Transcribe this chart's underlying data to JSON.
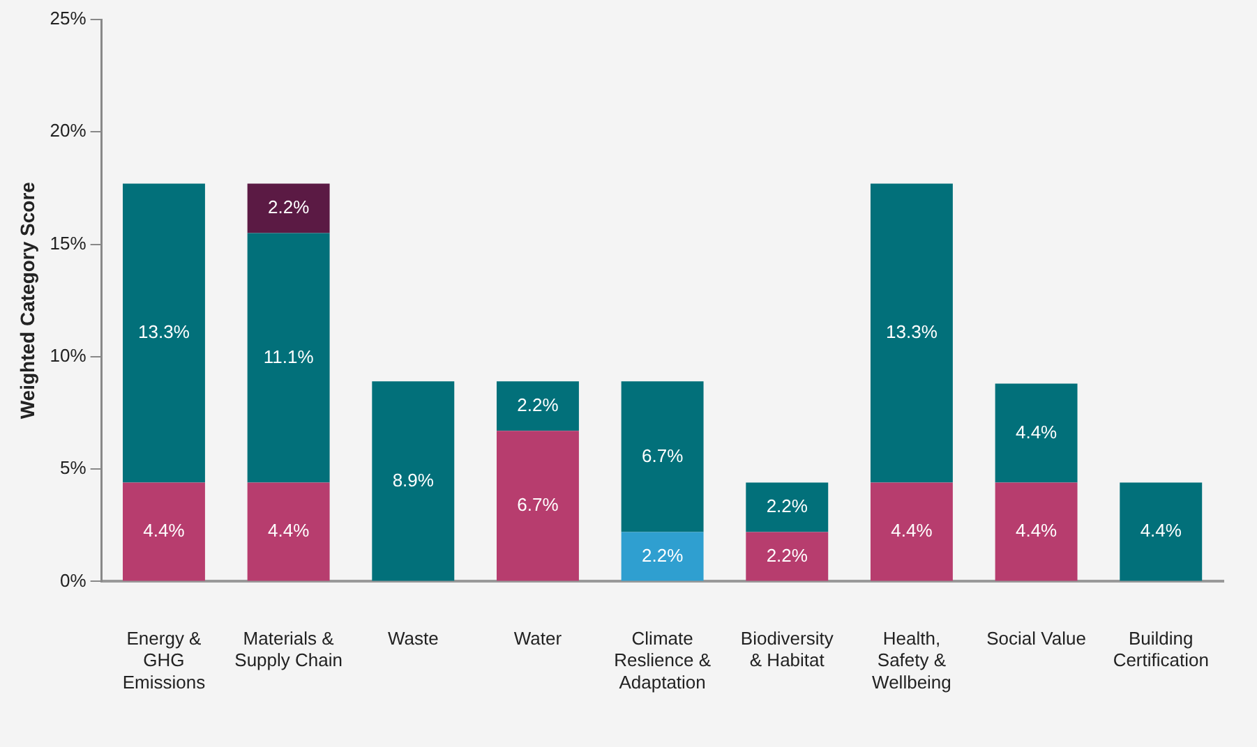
{
  "chart_data": {
    "type": "bar",
    "stacked": true,
    "ylabel": "Weighted Category Score",
    "categories": [
      "Energy & GHG Emissions",
      "Materials & Supply Chain",
      "Waste",
      "Water",
      "Climate Reslience & Adaptation",
      "Biodiversity & Habitat",
      "Health, Safety & Wellbeing",
      "Social Value",
      "Building Certification"
    ],
    "series": [
      {
        "color": "#b73d6e",
        "values": [
          4.4,
          4.4,
          null,
          6.7,
          null,
          2.2,
          4.4,
          4.4,
          null
        ],
        "value_labels": [
          "4.4%",
          "4.4%",
          null,
          "6.7%",
          null,
          "2.2%",
          "4.4%",
          "4.4%",
          null
        ]
      },
      {
        "color": "#2f9fd0",
        "values": [
          null,
          null,
          null,
          null,
          2.2,
          null,
          null,
          null,
          null
        ],
        "value_labels": [
          null,
          null,
          null,
          null,
          "2.2%",
          null,
          null,
          null,
          null
        ]
      },
      {
        "color": "#02707a",
        "values": [
          13.3,
          11.1,
          8.9,
          2.2,
          6.7,
          2.2,
          13.3,
          4.4,
          4.4
        ],
        "value_labels": [
          "13.3%",
          "11.1%",
          "8.9%",
          "2.2%",
          "6.7%",
          "2.2%",
          "13.3%",
          "4.4%",
          "4.4%"
        ]
      },
      {
        "color": "#5b1a44",
        "values": [
          null,
          2.2,
          null,
          null,
          null,
          null,
          null,
          null,
          null
        ],
        "value_labels": [
          null,
          "2.2%",
          null,
          null,
          null,
          null,
          null,
          null,
          null
        ]
      }
    ],
    "ylim": [
      0,
      25
    ],
    "yticks": [
      {
        "value": 0,
        "label": "0%"
      },
      {
        "value": 5,
        "label": "5%"
      },
      {
        "value": 10,
        "label": "10%"
      },
      {
        "value": 15,
        "label": "15%"
      },
      {
        "value": 20,
        "label": "20%"
      },
      {
        "value": 25,
        "label": "25%"
      }
    ],
    "grid": false,
    "legend": false
  }
}
